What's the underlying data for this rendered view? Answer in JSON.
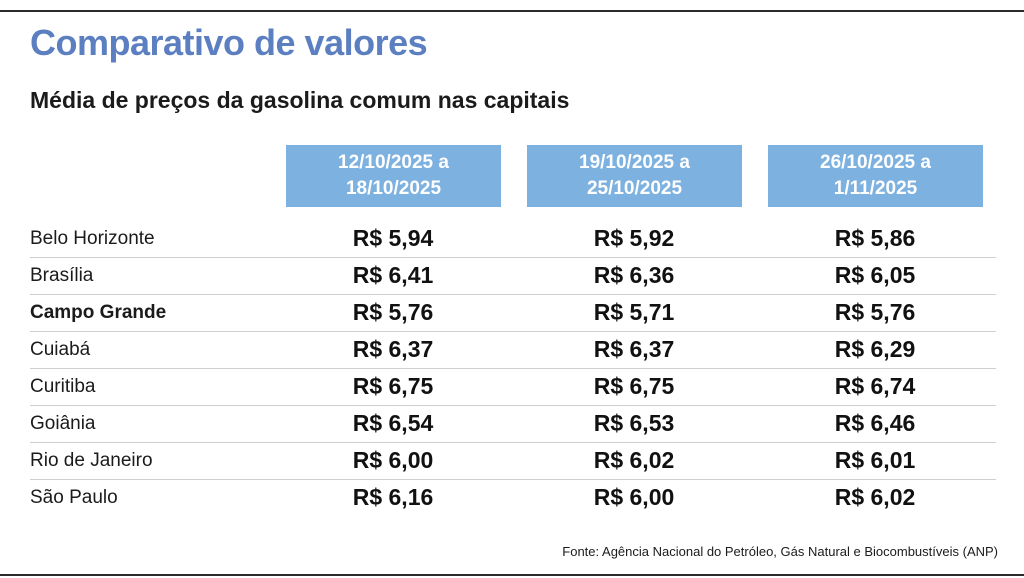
{
  "title": "Comparativo de valores",
  "subtitle": "Média de preços da gasolina comum nas capitais",
  "chart_data": {
    "type": "table",
    "title": "Comparativo de valores",
    "subtitle": "Média de preços da gasolina comum nas capitais",
    "unit": "R$",
    "columns": [
      "12/10/2025 a 18/10/2025",
      "19/10/2025 a 25/10/2025",
      "26/10/2025 a 1/11/2025"
    ],
    "rows": [
      {
        "city": "Belo Horizonte",
        "highlight": false,
        "prices": [
          "R$ 5,94",
          "R$ 5,92",
          "R$ 5,86"
        ],
        "values": [
          5.94,
          5.92,
          5.86
        ]
      },
      {
        "city": "Brasília",
        "highlight": false,
        "prices": [
          "R$ 6,41",
          "R$ 6,36",
          "R$ 6,05"
        ],
        "values": [
          6.41,
          6.36,
          6.05
        ]
      },
      {
        "city": "Campo Grande",
        "highlight": true,
        "prices": [
          "R$ 5,76",
          "R$ 5,71",
          "R$ 5,76"
        ],
        "values": [
          5.76,
          5.71,
          5.76
        ]
      },
      {
        "city": "Cuiabá",
        "highlight": false,
        "prices": [
          "R$ 6,37",
          "R$ 6,37",
          "R$ 6,29"
        ],
        "values": [
          6.37,
          6.37,
          6.29
        ]
      },
      {
        "city": "Curitiba",
        "highlight": false,
        "prices": [
          "R$ 6,75",
          "R$ 6,75",
          "R$ 6,74"
        ],
        "values": [
          6.75,
          6.75,
          6.74
        ]
      },
      {
        "city": "Goiânia",
        "highlight": false,
        "prices": [
          "R$ 6,54",
          "R$ 6,53",
          "R$ 6,46"
        ],
        "values": [
          6.54,
          6.53,
          6.46
        ]
      },
      {
        "city": "Rio de Janeiro",
        "highlight": false,
        "prices": [
          "R$ 6,00",
          "R$ 6,02",
          "R$ 6,01"
        ],
        "values": [
          6.0,
          6.02,
          6.01
        ]
      },
      {
        "city": "São Paulo",
        "highlight": false,
        "prices": [
          "R$ 6,16",
          "R$ 6,00",
          "R$ 6,02"
        ],
        "values": [
          6.16,
          6.0,
          6.02
        ]
      }
    ],
    "source": "Fonte: Agência Nacional do Petróleo, Gás Natural e Biocombustíveis (ANP)"
  },
  "colors": {
    "title": "#5b7fc0",
    "header_background": "#7db1df",
    "header_text": "#ffffff",
    "row_divider": "#cfcfcf"
  }
}
